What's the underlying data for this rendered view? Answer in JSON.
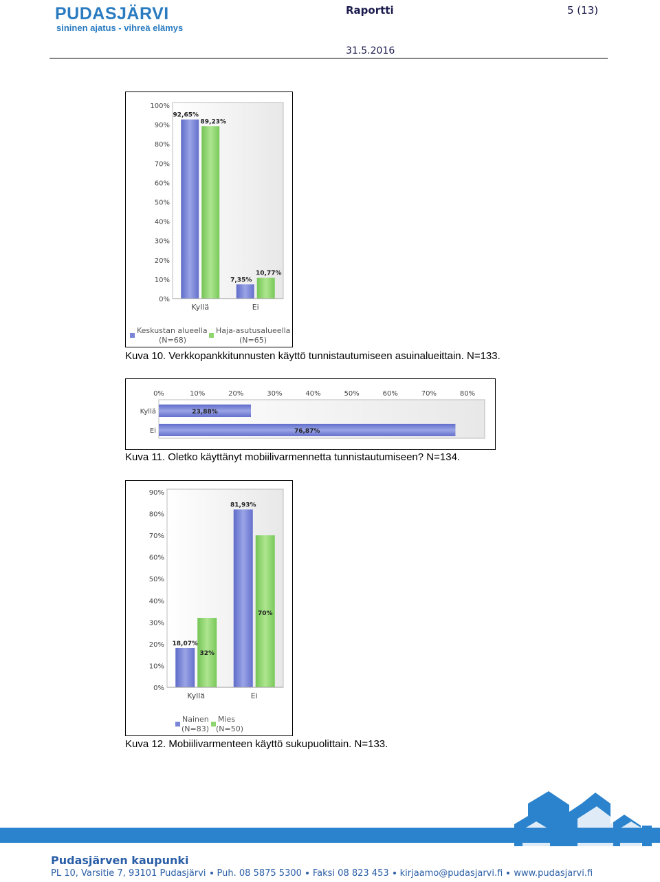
{
  "header": {
    "logo_title": "PUDASJÄRVI",
    "logo_subtitle": "sininen ajatus - vihreä elämys",
    "title": "Raportti",
    "page": "5 (13)",
    "date": "31.5.2016"
  },
  "colors": {
    "series_blue": "#7b86d6",
    "series_green": "#8fd670",
    "brand_blue": "#2a83cc"
  },
  "figures": [
    {
      "caption": "Kuva 10. Verkkopankkitunnusten käyttö tunnistautumiseen asuinalueittain. N=133."
    },
    {
      "caption": "Kuva 11. Oletko käyttänyt mobiilivarmennetta tunnistautumiseen? N=134."
    },
    {
      "caption": "Kuva 12. Mobiilivarmenteen käyttö sukupuolittain. N=133."
    }
  ],
  "chart_data": [
    {
      "type": "bar",
      "orientation": "vertical",
      "categories": [
        "Kyllä",
        "Ei"
      ],
      "series": [
        {
          "name": "Keskustan alueella",
          "n_label": "(N=68)",
          "values": [
            92.65,
            7.35
          ],
          "labels": [
            "92,65%",
            "7,35%"
          ]
        },
        {
          "name": "Haja-asutusalueella",
          "n_label": "(N=65)",
          "values": [
            89.23,
            10.77
          ],
          "labels": [
            "89,23%",
            "10,77%"
          ]
        }
      ],
      "ylim": [
        0,
        100
      ],
      "yticks": [
        "0%",
        "10%",
        "20%",
        "30%",
        "40%",
        "50%",
        "60%",
        "70%",
        "80%",
        "90%",
        "100%"
      ],
      "legend": "bottom"
    },
    {
      "type": "bar",
      "orientation": "horizontal",
      "categories": [
        "Kyllä",
        "Ei"
      ],
      "values": [
        23.88,
        76.87
      ],
      "labels": [
        "23,88%",
        "76,87%"
      ],
      "xlim": [
        0,
        80
      ],
      "xticks": [
        "0%",
        "10%",
        "20%",
        "30%",
        "40%",
        "50%",
        "60%",
        "70%",
        "80%"
      ]
    },
    {
      "type": "bar",
      "orientation": "vertical",
      "categories": [
        "Kyllä",
        "Ei"
      ],
      "series": [
        {
          "name": "Nainen",
          "n_label": "(N=83)",
          "values": [
            18.07,
            81.93
          ],
          "labels": [
            "18,07%",
            "81,93%"
          ]
        },
        {
          "name": "Mies",
          "n_label": "(N=50)",
          "values": [
            32,
            70
          ],
          "labels": [
            "32%",
            "70%"
          ]
        }
      ],
      "ylim": [
        0,
        90
      ],
      "yticks": [
        "0%",
        "10%",
        "20%",
        "30%",
        "40%",
        "50%",
        "60%",
        "70%",
        "80%",
        "90%"
      ],
      "legend": "bottom"
    }
  ],
  "footer": {
    "name": "Pudasjärven kaupunki",
    "contact": [
      "PL 10, Varsitie 7, 93101 Pudasjärvi",
      "Puh. 08 5875 5300",
      "Faksi 08 823 453",
      "kirjaamo@pudasjarvi.fi",
      "www.pudasjarvi.fi"
    ]
  }
}
